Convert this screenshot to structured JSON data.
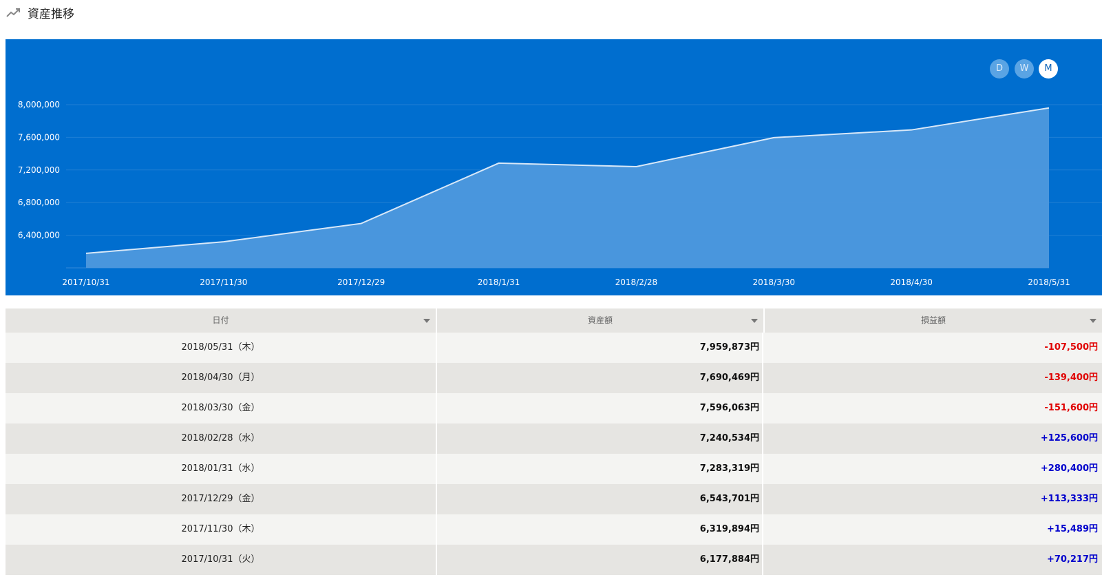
{
  "header": {
    "title": "資産推移",
    "icon": "trending-up-icon"
  },
  "colors": {
    "chart_background": "#006ecf",
    "area_fill": "#4d98dd",
    "line": "#d8e8f8",
    "negative": "#e00000",
    "positive": "#0000cc"
  },
  "range_buttons": [
    {
      "label": "D",
      "active": false
    },
    {
      "label": "W",
      "active": false
    },
    {
      "label": "M",
      "active": true
    }
  ],
  "chart_data": {
    "type": "area",
    "x": [
      "2017/10/31",
      "2017/11/30",
      "2017/12/29",
      "2018/1/31",
      "2018/2/28",
      "2018/3/30",
      "2018/4/30",
      "2018/5/31"
    ],
    "values": [
      6177884,
      6319894,
      6543701,
      7283319,
      7240534,
      7596063,
      7690469,
      7959873
    ],
    "yticks": [
      "6,400,000",
      "6,800,000",
      "7,200,000",
      "7,600,000",
      "8,000,000"
    ],
    "ytick_values": [
      6400000,
      6800000,
      7200000,
      7600000,
      8000000
    ],
    "ylim": [
      6000000,
      8000000
    ],
    "grid": true
  },
  "table": {
    "headers": [
      "日付",
      "資産額",
      "損益額"
    ],
    "rows": [
      {
        "date": "2018/05/31（木）",
        "asset": "7,959,873円",
        "pl": "-107,500円",
        "sign": "neg"
      },
      {
        "date": "2018/04/30（月）",
        "asset": "7,690,469円",
        "pl": "-139,400円",
        "sign": "neg"
      },
      {
        "date": "2018/03/30（金）",
        "asset": "7,596,063円",
        "pl": "-151,600円",
        "sign": "neg"
      },
      {
        "date": "2018/02/28（水）",
        "asset": "7,240,534円",
        "pl": "+125,600円",
        "sign": "pos"
      },
      {
        "date": "2018/01/31（水）",
        "asset": "7,283,319円",
        "pl": "+280,400円",
        "sign": "pos"
      },
      {
        "date": "2017/12/29（金）",
        "asset": "6,543,701円",
        "pl": "+113,333円",
        "sign": "pos"
      },
      {
        "date": "2017/11/30（木）",
        "asset": "6,319,894円",
        "pl": "+15,489円",
        "sign": "pos"
      },
      {
        "date": "2017/10/31（火）",
        "asset": "6,177,884円",
        "pl": "+70,217円",
        "sign": "pos"
      }
    ]
  }
}
